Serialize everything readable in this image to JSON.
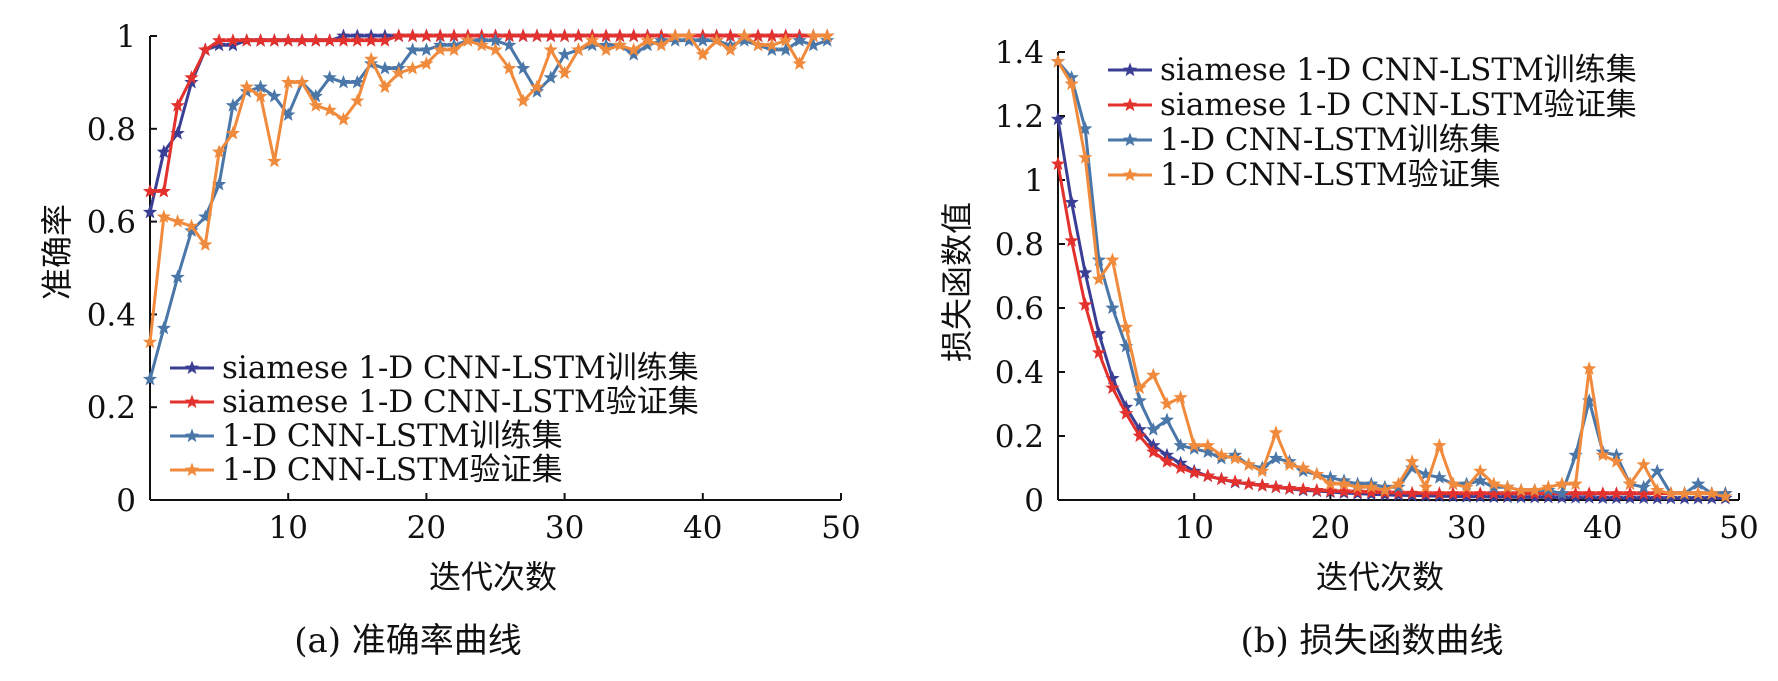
{
  "colors": {
    "siamese_train": "#3a3f95",
    "siamese_val": "#e3312d",
    "cnn_train": "#4a77a8",
    "cnn_val": "#f08a3c"
  },
  "chart_data": [
    {
      "type": "line",
      "caption": "(a) 准确率曲线",
      "xlabel": "迭代次数",
      "ylabel": "准确率",
      "xlim": [
        0,
        50
      ],
      "ylim": [
        0,
        1
      ],
      "xticks": [
        "10",
        "20",
        "30",
        "40",
        "50"
      ],
      "yticks": [
        "0",
        "0.2",
        "0.4",
        "0.6",
        "0.8",
        "1"
      ],
      "legend_position": "lower-left",
      "grid": false,
      "x": [
        0,
        1,
        2,
        3,
        4,
        5,
        6,
        7,
        8,
        9,
        10,
        11,
        12,
        13,
        14,
        15,
        16,
        17,
        18,
        19,
        20,
        21,
        22,
        23,
        24,
        25,
        26,
        27,
        28,
        29,
        30,
        31,
        32,
        33,
        34,
        35,
        36,
        37,
        38,
        39,
        40,
        41,
        42,
        43,
        44,
        45,
        46,
        47,
        48,
        49
      ],
      "series": [
        {
          "name": "siamese 1-D CNN-LSTM训练集",
          "color_key": "siamese_train",
          "values": [
            0.62,
            0.75,
            0.79,
            0.9,
            0.97,
            0.98,
            0.98,
            0.99,
            0.99,
            0.99,
            0.99,
            0.99,
            0.99,
            0.99,
            1.0,
            1.0,
            1.0,
            1.0,
            1.0,
            1.0,
            1.0,
            1.0,
            1.0,
            1.0,
            1.0,
            1.0,
            1.0,
            1.0,
            1.0,
            1.0,
            1.0,
            1.0,
            1.0,
            1.0,
            1.0,
            1.0,
            1.0,
            1.0,
            1.0,
            1.0,
            1.0,
            1.0,
            1.0,
            1.0,
            1.0,
            1.0,
            1.0,
            1.0,
            1.0,
            1.0
          ]
        },
        {
          "name": "siamese 1-D CNN-LSTM验证集",
          "color_key": "siamese_val",
          "values": [
            0.665,
            0.665,
            0.85,
            0.91,
            0.97,
            0.99,
            0.99,
            0.99,
            0.99,
            0.99,
            0.99,
            0.99,
            0.99,
            0.99,
            0.99,
            0.99,
            0.99,
            0.99,
            1.0,
            1.0,
            1.0,
            1.0,
            1.0,
            1.0,
            1.0,
            1.0,
            1.0,
            1.0,
            1.0,
            1.0,
            1.0,
            1.0,
            1.0,
            1.0,
            1.0,
            1.0,
            1.0,
            1.0,
            1.0,
            1.0,
            1.0,
            1.0,
            1.0,
            1.0,
            1.0,
            1.0,
            1.0,
            1.0,
            1.0,
            1.0
          ]
        },
        {
          "name": "1-D CNN-LSTM训练集",
          "color_key": "cnn_train",
          "values": [
            0.26,
            0.37,
            0.48,
            0.58,
            0.61,
            0.68,
            0.85,
            0.88,
            0.89,
            0.87,
            0.83,
            0.9,
            0.87,
            0.91,
            0.9,
            0.9,
            0.94,
            0.93,
            0.93,
            0.97,
            0.97,
            0.98,
            0.98,
            0.99,
            0.99,
            0.99,
            0.98,
            0.93,
            0.88,
            0.91,
            0.96,
            0.97,
            0.98,
            0.98,
            0.98,
            0.96,
            0.98,
            0.99,
            0.99,
            0.99,
            0.99,
            0.99,
            0.98,
            0.99,
            0.98,
            0.97,
            0.97,
            0.99,
            0.98,
            0.99
          ]
        },
        {
          "name": "1-D CNN-LSTM验证集",
          "color_key": "cnn_val",
          "values": [
            0.34,
            0.61,
            0.6,
            0.59,
            0.55,
            0.75,
            0.79,
            0.89,
            0.87,
            0.73,
            0.9,
            0.9,
            0.85,
            0.84,
            0.82,
            0.86,
            0.95,
            0.89,
            0.92,
            0.93,
            0.94,
            0.97,
            0.97,
            0.99,
            0.98,
            0.97,
            0.93,
            0.86,
            0.89,
            0.97,
            0.92,
            0.97,
            0.99,
            0.97,
            0.98,
            0.97,
            0.99,
            0.98,
            1.0,
            1.0,
            0.96,
            0.99,
            0.97,
            1.0,
            0.98,
            0.98,
            0.99,
            0.94,
            1.0,
            1.0
          ]
        }
      ]
    },
    {
      "type": "line",
      "caption": "(b) 损失函数曲线",
      "xlabel": "迭代次数",
      "ylabel": "损失函数值",
      "xlim": [
        0,
        50
      ],
      "ylim": [
        0,
        1.4
      ],
      "xticks": [
        "10",
        "20",
        "30",
        "40",
        "50"
      ],
      "yticks": [
        "0",
        "0.2",
        "0.4",
        "0.6",
        "0.8",
        "1",
        "1.2",
        "1.4"
      ],
      "legend_position": "top-right",
      "grid": false,
      "x": [
        0,
        1,
        2,
        3,
        4,
        5,
        6,
        7,
        8,
        9,
        10,
        11,
        12,
        13,
        14,
        15,
        16,
        17,
        18,
        19,
        20,
        21,
        22,
        23,
        24,
        25,
        26,
        27,
        28,
        29,
        30,
        31,
        32,
        33,
        34,
        35,
        36,
        37,
        38,
        39,
        40,
        41,
        42,
        43,
        44,
        45,
        46,
        47,
        48,
        49
      ],
      "series": [
        {
          "name": "siamese 1-D CNN-LSTM训练集",
          "color_key": "siamese_train",
          "values": [
            1.19,
            0.93,
            0.71,
            0.52,
            0.38,
            0.29,
            0.22,
            0.17,
            0.14,
            0.115,
            0.09,
            0.075,
            0.065,
            0.055,
            0.05,
            0.045,
            0.04,
            0.035,
            0.03,
            0.028,
            0.025,
            0.022,
            0.02,
            0.018,
            0.016,
            0.015,
            0.014,
            0.013,
            0.012,
            0.011,
            0.01,
            0.01,
            0.009,
            0.009,
            0.008,
            0.008,
            0.008,
            0.007,
            0.007,
            0.007,
            0.006,
            0.006,
            0.006,
            0.006,
            0.005,
            0.005,
            0.005,
            0.005,
            0.005,
            0.005
          ]
        },
        {
          "name": "siamese 1-D CNN-LSTM验证集",
          "color_key": "siamese_val",
          "values": [
            1.05,
            0.81,
            0.61,
            0.46,
            0.35,
            0.27,
            0.2,
            0.15,
            0.12,
            0.1,
            0.085,
            0.075,
            0.065,
            0.057,
            0.05,
            0.045,
            0.04,
            0.036,
            0.033,
            0.03,
            0.028,
            0.026,
            0.025,
            0.024,
            0.023,
            0.022,
            0.021,
            0.02,
            0.02,
            0.02,
            0.02,
            0.02,
            0.02,
            0.02,
            0.02,
            0.02,
            0.02,
            0.02,
            0.02,
            0.02,
            0.02,
            0.02,
            0.02,
            0.02,
            0.02,
            0.02,
            0.02,
            0.02,
            0.02,
            0.02
          ]
        },
        {
          "name": "1-D CNN-LSTM训练集",
          "color_key": "cnn_train",
          "values": [
            1.37,
            1.32,
            1.16,
            0.75,
            0.6,
            0.48,
            0.31,
            0.22,
            0.25,
            0.17,
            0.16,
            0.15,
            0.13,
            0.14,
            0.11,
            0.1,
            0.13,
            0.12,
            0.09,
            0.08,
            0.07,
            0.06,
            0.05,
            0.05,
            0.04,
            0.04,
            0.1,
            0.08,
            0.07,
            0.05,
            0.05,
            0.06,
            0.04,
            0.04,
            0.03,
            0.03,
            0.03,
            0.02,
            0.14,
            0.31,
            0.15,
            0.14,
            0.05,
            0.04,
            0.09,
            0.02,
            0.02,
            0.05,
            0.02,
            0.02
          ]
        },
        {
          "name": "1-D CNN-LSTM验证集",
          "color_key": "cnn_val",
          "values": [
            1.37,
            1.3,
            1.07,
            0.69,
            0.75,
            0.54,
            0.35,
            0.39,
            0.3,
            0.32,
            0.17,
            0.17,
            0.14,
            0.13,
            0.11,
            0.09,
            0.21,
            0.11,
            0.1,
            0.08,
            0.05,
            0.05,
            0.04,
            0.04,
            0.03,
            0.05,
            0.12,
            0.04,
            0.17,
            0.05,
            0.04,
            0.09,
            0.05,
            0.04,
            0.03,
            0.03,
            0.04,
            0.05,
            0.05,
            0.41,
            0.14,
            0.12,
            0.05,
            0.11,
            0.03,
            0.02,
            0.02,
            0.02,
            0.02,
            0.01
          ]
        }
      ]
    }
  ]
}
